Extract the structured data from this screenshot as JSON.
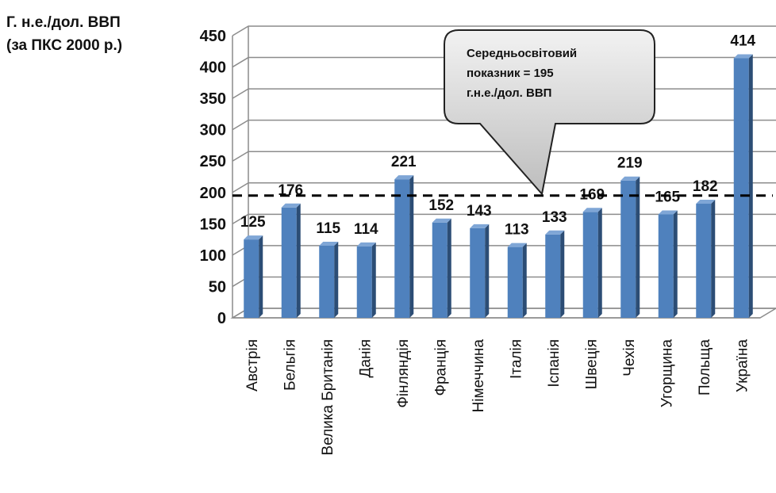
{
  "chart_data": {
    "type": "bar",
    "ylabel_line1": "Г. н.е./дол. ВВП",
    "ylabel_line2": "(за ПКС 2000 р.)",
    "categories": [
      "Австрія",
      "Бельгія",
      "Велика Британія",
      "Данія",
      "Фінляндія",
      "Франція",
      "Німеччина",
      "Італія",
      "Іспанія",
      "Швеція",
      "Чехія",
      "Угорщина",
      "Польща",
      "Україна"
    ],
    "values": [
      125,
      176,
      115,
      114,
      221,
      152,
      143,
      113,
      133,
      169,
      219,
      165,
      182,
      414
    ],
    "ylim": [
      0,
      450
    ],
    "yticks": [
      0,
      50,
      100,
      150,
      200,
      250,
      300,
      350,
      400,
      450
    ],
    "grid": true,
    "reference_line": {
      "value": 195
    },
    "annotation": {
      "lines": [
        "Середньосвітовий",
        "показник  = 195",
        "г.н.е./дол. ВВП"
      ]
    },
    "colors": {
      "bar": "#4f81bd",
      "bar_side": "#2c4d75",
      "bar_top": "#7fa6d6",
      "grid": "#8c8c8c"
    }
  }
}
